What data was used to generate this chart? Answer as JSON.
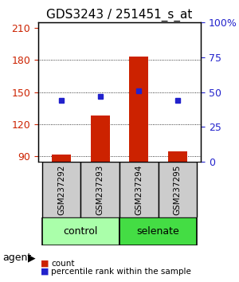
{
  "title": "GDS3243 / 251451_s_at",
  "samples": [
    "GSM237292",
    "GSM237293",
    "GSM237294",
    "GSM237295"
  ],
  "counts": [
    92,
    128,
    183,
    95
  ],
  "percentiles": [
    44,
    47,
    51,
    44
  ],
  "ylim_left": [
    85,
    215
  ],
  "yticks_left": [
    90,
    120,
    150,
    180,
    210
  ],
  "ylim_right": [
    0,
    100
  ],
  "yticks_right": [
    0,
    25,
    50,
    75,
    100
  ],
  "bar_color": "#cc2200",
  "dot_color": "#2222cc",
  "groups": [
    {
      "label": "control",
      "samples": [
        0,
        1
      ],
      "color": "#aaffaa"
    },
    {
      "label": "selenate",
      "samples": [
        2,
        3
      ],
      "color": "#44dd44"
    }
  ],
  "agent_label": "agent",
  "legend_count_label": "count",
  "legend_pct_label": "percentile rank within the sample",
  "title_fontsize": 11,
  "tick_fontsize": 9,
  "label_fontsize": 9,
  "bar_width": 0.5,
  "grid_color": "#000000",
  "grid_linestyle": "dotted"
}
